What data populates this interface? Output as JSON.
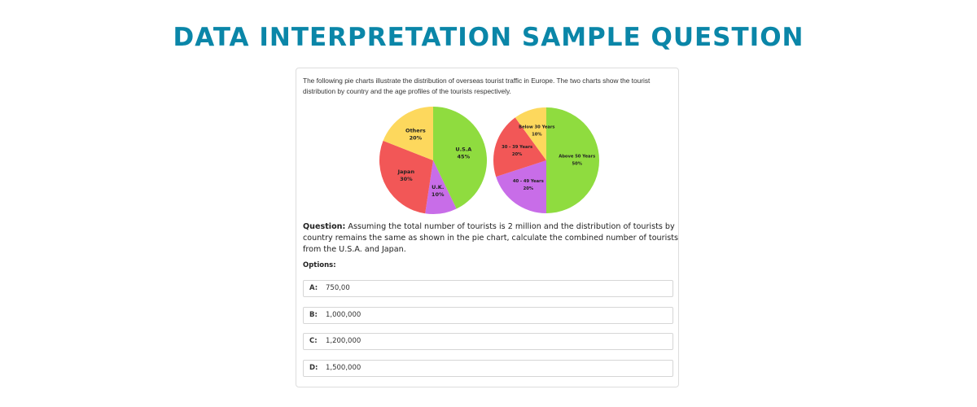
{
  "title": "DATA INTERPRETATION SAMPLE QUESTION",
  "intro": "The following pie charts illustrate the distribution of overseas tourist traffic in Europe. The two charts show the tourist distribution by country and the age profiles of the tourists respectively.",
  "chart_data": [
    {
      "type": "pie",
      "categories": [
        "U.S.A",
        "U.K.",
        "Japan",
        "Others"
      ],
      "values": [
        45,
        10,
        30,
        20
      ],
      "value_labels": [
        "45%",
        "10%",
        "30%",
        "20%"
      ],
      "colors": [
        "#8fdc3f",
        "#c86de8",
        "#f25757",
        "#fdd85d"
      ]
    },
    {
      "type": "pie",
      "categories": [
        "Above 50 Years",
        "40 - 49 Years",
        "30 - 39 Years",
        "Below 30 Years"
      ],
      "values": [
        50,
        20,
        20,
        10
      ],
      "value_labels": [
        "50%",
        "20%",
        "20%",
        "10%"
      ],
      "colors": [
        "#8fdc3f",
        "#c86de8",
        "#f25757",
        "#fdd85d"
      ]
    }
  ],
  "question": {
    "label": "Question:",
    "text": "Assuming the total number of tourists is 2 million and the distribution of tourists by country remains the same as shown in the pie chart, calculate the combined number of tourists from the U.S.A. and Japan."
  },
  "options_label": "Options:",
  "options": [
    {
      "letter": "A:",
      "text": "750,00"
    },
    {
      "letter": "B:",
      "text": "1,000,000"
    },
    {
      "letter": "C:",
      "text": "1,200,000"
    },
    {
      "letter": "D:",
      "text": "1,500,000"
    }
  ]
}
